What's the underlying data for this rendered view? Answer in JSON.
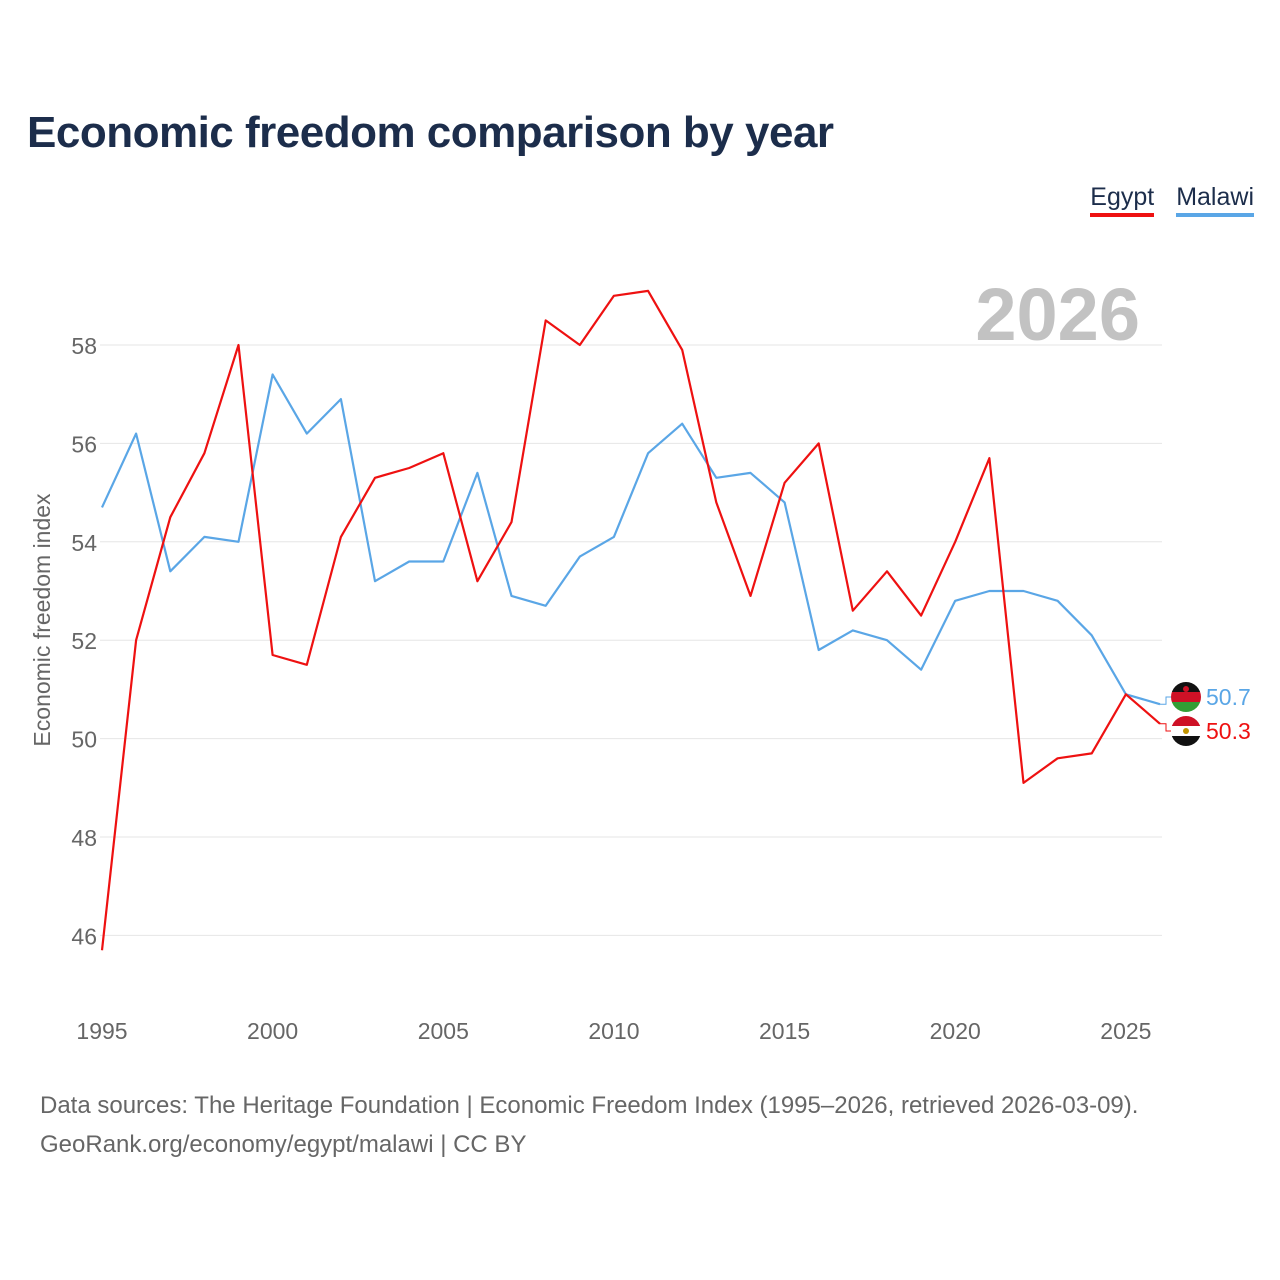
{
  "title": "Economic freedom comparison by year",
  "legend": [
    {
      "label": "Egypt",
      "color": "#ee1111"
    },
    {
      "label": "Malawi",
      "color": "#5aa6e6"
    }
  ],
  "year_watermark": "2026",
  "source": {
    "line1": "Data sources: The Heritage Foundation | Economic Freedom Index (1995–2026, retrieved 2026-03-09).",
    "line2": "GeoRank.org/economy/egypt/malawi | CC BY"
  },
  "chart_data": {
    "type": "line",
    "title": "Economic freedom comparison by year",
    "xlabel": "",
    "ylabel": "Economic freedom index",
    "xlim": [
      1995,
      2026
    ],
    "ylim": [
      45.2,
      59.6
    ],
    "xticks": [
      1995,
      2000,
      2005,
      2010,
      2015,
      2020,
      2025
    ],
    "yticks": [
      46,
      48,
      50,
      52,
      54,
      56,
      58
    ],
    "grid": true,
    "legend_position": "top-right",
    "x": [
      1995,
      1996,
      1997,
      1998,
      1999,
      2000,
      2001,
      2002,
      2003,
      2004,
      2005,
      2006,
      2007,
      2008,
      2009,
      2010,
      2011,
      2012,
      2013,
      2014,
      2015,
      2016,
      2017,
      2018,
      2019,
      2020,
      2021,
      2022,
      2023,
      2024,
      2025,
      2026
    ],
    "series": [
      {
        "name": "Egypt",
        "color": "#ee1111",
        "end_label": "50.3",
        "values": [
          45.7,
          52.0,
          54.5,
          55.8,
          58.0,
          51.7,
          51.5,
          54.1,
          55.3,
          55.5,
          55.8,
          53.2,
          54.4,
          58.5,
          58.0,
          59.0,
          59.1,
          57.9,
          54.8,
          52.9,
          55.2,
          56.0,
          52.6,
          53.4,
          52.5,
          54.0,
          55.7,
          49.1,
          49.6,
          49.7,
          50.9,
          50.3
        ]
      },
      {
        "name": "Malawi",
        "color": "#5aa6e6",
        "end_label": "50.7",
        "values": [
          54.7,
          56.2,
          53.4,
          54.1,
          54.0,
          57.4,
          56.2,
          56.9,
          53.2,
          53.6,
          53.6,
          55.4,
          52.9,
          52.7,
          53.7,
          54.1,
          55.8,
          56.4,
          55.3,
          55.4,
          54.8,
          51.8,
          52.2,
          52.0,
          51.4,
          52.8,
          53.0,
          53.0,
          52.8,
          52.1,
          50.9,
          50.7
        ]
      }
    ]
  }
}
